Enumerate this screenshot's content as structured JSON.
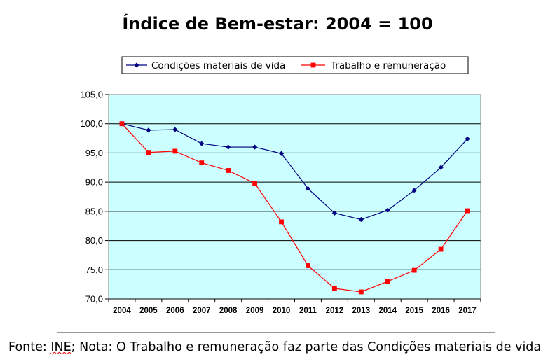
{
  "chart_data": {
    "type": "line",
    "title": "Índice de Bem-estar: 2004 = 100",
    "xlabel": "",
    "ylabel": "",
    "x": [
      "2004",
      "2005",
      "2006",
      "2007",
      "2008",
      "2009",
      "2010",
      "2011",
      "2012",
      "2013",
      "2014",
      "2015",
      "2016",
      "2017"
    ],
    "ylim": [
      70,
      105
    ],
    "yticks": [
      "70,0",
      "75,0",
      "80,0",
      "85,0",
      "90,0",
      "95,0",
      "100,0",
      "105,0"
    ],
    "ytick_values": [
      70,
      75,
      80,
      85,
      90,
      95,
      100,
      105
    ],
    "grid": true,
    "legend_position": "top",
    "plot_background": "#CCFFFF",
    "series": [
      {
        "name": "Condições materiais de vida",
        "color": "#000080",
        "marker": "diamond",
        "values": [
          100.0,
          98.9,
          99.0,
          96.6,
          96.0,
          96.0,
          94.9,
          88.9,
          84.7,
          83.6,
          85.2,
          88.6,
          92.5,
          97.4
        ]
      },
      {
        "name": "Trabalho e remuneração",
        "color": "#FF0000",
        "marker": "square",
        "values": [
          100.0,
          95.1,
          95.3,
          93.3,
          92.0,
          89.8,
          83.2,
          75.7,
          71.8,
          71.2,
          73.0,
          74.9,
          78.5,
          85.1
        ]
      }
    ]
  },
  "footer": {
    "prefix": "Fonte: ",
    "source": "INE",
    "suffix": "; Nota: O Trabalho e remuneração faz parte das Condições materiais de vida"
  }
}
